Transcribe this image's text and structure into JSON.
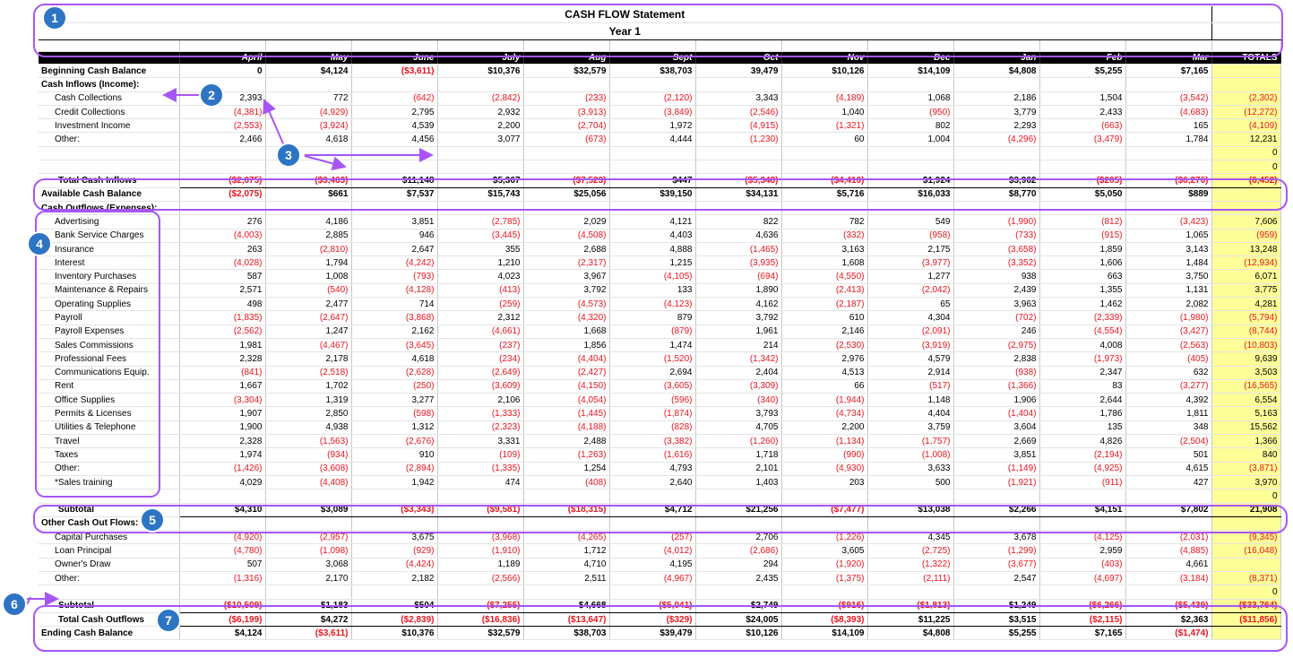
{
  "title": "CASH FLOW Statement",
  "subtitle": "Year 1",
  "months": [
    "April",
    "May",
    "June",
    "July",
    "Aug",
    "Sept",
    "Oct",
    "Nov",
    "Dec",
    "Jan",
    "Feb",
    "Mar"
  ],
  "totals_label": "TOTALS",
  "colors": {
    "negative": "#e8141e",
    "totals_fill": "#ffff99",
    "annotation": "#a855f7",
    "badge": "#2d74c4"
  },
  "rows": [
    {
      "label": "Beginning Cash Balance",
      "style": "bold",
      "values": [
        "0",
        "$4,124",
        "($3,611)",
        "$10,376",
        "$32,579",
        "$38,703",
        "39,479",
        "$10,126",
        "$14,109",
        "$4,808",
        "$5,255",
        "$7,165"
      ],
      "total": ""
    },
    {
      "label": "Cash Inflows (Income):",
      "style": "bold",
      "values": [
        "",
        "",
        "",
        "",
        "",
        "",
        "",
        "",
        "",
        "",
        "",
        ""
      ],
      "total": ""
    },
    {
      "label": "Cash Collections",
      "style": "item",
      "values": [
        "2,393",
        "772",
        "(642)",
        "(2,842)",
        "(233)",
        "(2,120)",
        "3,343",
        "(4,189)",
        "1,068",
        "2,186",
        "1,504",
        "(3,542)"
      ],
      "total": "(2,302)"
    },
    {
      "label": "Credit Collections",
      "style": "item",
      "values": [
        "(4,381)",
        "(4,929)",
        "2,795",
        "2,932",
        "(3,913)",
        "(3,849)",
        "(2,546)",
        "1,040",
        "(950)",
        "3,779",
        "2,433",
        "(4,683)"
      ],
      "total": "(12,272)"
    },
    {
      "label": "Investment Income",
      "style": "item",
      "values": [
        "(2,553)",
        "(3,924)",
        "4,539",
        "2,200",
        "(2,704)",
        "1,972",
        "(4,915)",
        "(1,321)",
        "802",
        "2,293",
        "(663)",
        "165"
      ],
      "total": "(4,109)"
    },
    {
      "label": "Other:",
      "style": "item",
      "values": [
        "2,466",
        "4,618",
        "4,456",
        "3,077",
        "(673)",
        "4,444",
        "(1,230)",
        "60",
        "1,004",
        "(4,296)",
        "(3,479)",
        "1,784"
      ],
      "total": "12,231"
    },
    {
      "label": "",
      "style": "item",
      "values": [
        "",
        "",
        "",
        "",
        "",
        "",
        "",
        "",
        "",
        "",
        "",
        ""
      ],
      "total": "0"
    },
    {
      "label": "",
      "style": "item",
      "values": [
        "",
        "",
        "",
        "",
        "",
        "",
        "",
        "",
        "",
        "",
        "",
        ""
      ],
      "total": "0"
    },
    {
      "label": "Total Cash Inflows",
      "style": "boldsub",
      "values": [
        "($2,075)",
        "($3,463)",
        "$11,148",
        "$5,367",
        "($7,523)",
        "$447",
        "($5,348)",
        "($4,410)",
        "$1,924",
        "$3,962",
        "($205)",
        "($6,276)"
      ],
      "total": "(6,452)"
    },
    {
      "label": "Available Cash Balance",
      "style": "bold",
      "values": [
        "($2,075)",
        "$661",
        "$7,537",
        "$15,743",
        "$25,056",
        "$39,150",
        "$34,131",
        "$5,716",
        "$16,033",
        "$8,770",
        "$5,050",
        "$889"
      ],
      "total": ""
    },
    {
      "label": "Cash Outflows (Expenses):",
      "style": "bold",
      "values": [
        "",
        "",
        "",
        "",
        "",
        "",
        "",
        "",
        "",
        "",
        "",
        ""
      ],
      "total": ""
    },
    {
      "label": "Advertising",
      "style": "item",
      "values": [
        "276",
        "4,186",
        "3,851",
        "(2,785)",
        "2,029",
        "4,121",
        "822",
        "782",
        "549",
        "(1,990)",
        "(812)",
        "(3,423)"
      ],
      "total": "7,606"
    },
    {
      "label": "Bank Service Charges",
      "style": "item",
      "values": [
        "(4,003)",
        "2,885",
        "946",
        "(3,445)",
        "(4,508)",
        "4,403",
        "4,636",
        "(332)",
        "(958)",
        "(733)",
        "(915)",
        "1,065"
      ],
      "total": "(959)"
    },
    {
      "label": "Insurance",
      "style": "item",
      "values": [
        "263",
        "(2,810)",
        "2,647",
        "355",
        "2,688",
        "4,888",
        "(1,465)",
        "3,163",
        "2,175",
        "(3,658)",
        "1,859",
        "3,143"
      ],
      "total": "13,248"
    },
    {
      "label": "Interest",
      "style": "item",
      "values": [
        "(4,028)",
        "1,794",
        "(4,242)",
        "1,210",
        "(2,317)",
        "1,215",
        "(3,935)",
        "1,608",
        "(3,977)",
        "(3,352)",
        "1,606",
        "1,484"
      ],
      "total": "(12,934)"
    },
    {
      "label": "Inventory Purchases",
      "style": "item",
      "values": [
        "587",
        "1,008",
        "(793)",
        "4,023",
        "3,967",
        "(4,105)",
        "(694)",
        "(4,550)",
        "1,277",
        "938",
        "663",
        "3,750"
      ],
      "total": "6,071"
    },
    {
      "label": "Maintenance & Repairs",
      "style": "item",
      "values": [
        "2,571",
        "(540)",
        "(4,128)",
        "(413)",
        "3,792",
        "133",
        "1,890",
        "(2,413)",
        "(2,042)",
        "2,439",
        "1,355",
        "1,131"
      ],
      "total": "3,775"
    },
    {
      "label": "Operating Supplies",
      "style": "item",
      "values": [
        "498",
        "2,477",
        "714",
        "(259)",
        "(4,573)",
        "(4,123)",
        "4,162",
        "(2,187)",
        "65",
        "3,963",
        "1,462",
        "2,082"
      ],
      "total": "4,281"
    },
    {
      "label": "Payroll",
      "style": "item",
      "values": [
        "(1,835)",
        "(2,647)",
        "(3,868)",
        "2,312",
        "(4,320)",
        "879",
        "3,792",
        "610",
        "4,304",
        "(702)",
        "(2,339)",
        "(1,980)"
      ],
      "total": "(5,794)"
    },
    {
      "label": "Payroll Expenses",
      "style": "item",
      "values": [
        "(2,562)",
        "1,247",
        "2,162",
        "(4,661)",
        "1,668",
        "(879)",
        "1,961",
        "2,146",
        "(2,091)",
        "246",
        "(4,554)",
        "(3,427)"
      ],
      "total": "(8,744)"
    },
    {
      "label": "Sales Commissions",
      "style": "item",
      "values": [
        "1,981",
        "(4,467)",
        "(3,645)",
        "(237)",
        "1,856",
        "1,474",
        "214",
        "(2,530)",
        "(3,919)",
        "(2,975)",
        "4,008",
        "(2,563)"
      ],
      "total": "(10,803)"
    },
    {
      "label": "Professional Fees",
      "style": "item",
      "values": [
        "2,328",
        "2,178",
        "4,618",
        "(234)",
        "(4,404)",
        "(1,520)",
        "(1,342)",
        "2,976",
        "4,579",
        "2,838",
        "(1,973)",
        "(405)"
      ],
      "total": "9,639"
    },
    {
      "label": "Communications Equip.",
      "style": "item",
      "values": [
        "(841)",
        "(2,518)",
        "(2,628)",
        "(2,649)",
        "(2,427)",
        "2,694",
        "2,404",
        "4,513",
        "2,914",
        "(938)",
        "2,347",
        "632"
      ],
      "total": "3,503"
    },
    {
      "label": "Rent",
      "style": "item",
      "values": [
        "1,667",
        "1,702",
        "(250)",
        "(3,609)",
        "(4,150)",
        "(3,605)",
        "(3,309)",
        "66",
        "(517)",
        "(1,366)",
        "83",
        "(3,277)"
      ],
      "total": "(16,565)"
    },
    {
      "label": "Office Supplies",
      "style": "item",
      "values": [
        "(3,304)",
        "1,319",
        "3,277",
        "2,106",
        "(4,054)",
        "(596)",
        "(340)",
        "(1,944)",
        "1,148",
        "1,906",
        "2,644",
        "4,392"
      ],
      "total": "6,554"
    },
    {
      "label": "Permits & Licenses",
      "style": "item",
      "values": [
        "1,907",
        "2,850",
        "(598)",
        "(1,333)",
        "(1,445)",
        "(1,874)",
        "3,793",
        "(4,734)",
        "4,404",
        "(1,404)",
        "1,786",
        "1,811"
      ],
      "total": "5,163"
    },
    {
      "label": "Utilities & Telephone",
      "style": "item",
      "values": [
        "1,900",
        "4,938",
        "1,312",
        "(2,323)",
        "(4,188)",
        "(828)",
        "4,705",
        "2,200",
        "3,759",
        "3,604",
        "135",
        "348"
      ],
      "total": "15,562"
    },
    {
      "label": "Travel",
      "style": "item",
      "values": [
        "2,328",
        "(1,563)",
        "(2,676)",
        "3,331",
        "2,488",
        "(3,382)",
        "(1,260)",
        "(1,134)",
        "(1,757)",
        "2,669",
        "4,826",
        "(2,504)"
      ],
      "total": "1,366"
    },
    {
      "label": "Taxes",
      "style": "item",
      "values": [
        "1,974",
        "(934)",
        "910",
        "(109)",
        "(1,263)",
        "(1,616)",
        "1,718",
        "(990)",
        "(1,008)",
        "3,851",
        "(2,194)",
        "501"
      ],
      "total": "840"
    },
    {
      "label": "Other:",
      "style": "item",
      "values": [
        "(1,426)",
        "(3,608)",
        "(2,894)",
        "(1,335)",
        "1,254",
        "4,793",
        "2,101",
        "(4,930)",
        "3,633",
        "(1,149)",
        "(4,925)",
        "4,615"
      ],
      "total": "(3,871)"
    },
    {
      "label": "*Sales training",
      "style": "item",
      "values": [
        "4,029",
        "(4,408)",
        "1,942",
        "474",
        "(408)",
        "2,640",
        "1,403",
        "203",
        "500",
        "(1,921)",
        "(911)",
        "427"
      ],
      "total": "3,970"
    },
    {
      "label": "",
      "style": "item",
      "values": [
        "",
        "",
        "",
        "",
        "",
        "",
        "",
        "",
        "",
        "",
        "",
        ""
      ],
      "total": "0"
    },
    {
      "label": "Subtotal",
      "style": "boldsub",
      "values": [
        "$4,310",
        "$3,089",
        "($3,343)",
        "($9,581)",
        "($18,315)",
        "$4,712",
        "$21,256",
        "($7,477)",
        "$13,038",
        "$2,266",
        "$4,151",
        "$7,802"
      ],
      "total": "21,908"
    },
    {
      "label": "Other Cash Out Flows:",
      "style": "bold",
      "values": [
        "",
        "",
        "",
        "",
        "",
        "",
        "",
        "",
        "",
        "",
        "",
        ""
      ],
      "total": ""
    },
    {
      "label": "Capital Purchases",
      "style": "item",
      "values": [
        "(4,920)",
        "(2,957)",
        "3,675",
        "(3,968)",
        "(4,265)",
        "(257)",
        "2,706",
        "(1,226)",
        "4,345",
        "3,678",
        "(4,125)",
        "(2,031)"
      ],
      "total": "(9,345)"
    },
    {
      "label": "Loan Principal",
      "style": "item",
      "values": [
        "(4,780)",
        "(1,098)",
        "(929)",
        "(1,910)",
        "1,712",
        "(4,012)",
        "(2,686)",
        "3,605",
        "(2,725)",
        "(1,299)",
        "2,959",
        "(4,885)"
      ],
      "total": "(16,048)"
    },
    {
      "label": "Owner's Draw",
      "style": "item",
      "values": [
        "507",
        "3,068",
        "(4,424)",
        "1,189",
        "4,710",
        "4,195",
        "294",
        "(1,920)",
        "(1,322)",
        "(3,677)",
        "(403)",
        "4,661"
      ],
      "total": ""
    },
    {
      "label": "Other:",
      "style": "item",
      "values": [
        "(1,316)",
        "2,170",
        "2,182",
        "(2,566)",
        "2,511",
        "(4,967)",
        "2,435",
        "(1,375)",
        "(2,111)",
        "2,547",
        "(4,697)",
        "(3,184)"
      ],
      "total": "(8,371)"
    },
    {
      "label": "",
      "style": "item",
      "values": [
        "",
        "",
        "",
        "",
        "",
        "",
        "",
        "",
        "",
        "",
        "",
        ""
      ],
      "total": "0"
    },
    {
      "label": "Subtotal",
      "style": "boldsub",
      "values": [
        "($10,509)",
        "$1,183",
        "$504",
        "($7,255)",
        "$4,668",
        "($5,041)",
        "$2,749",
        "($916)",
        "($1,813)",
        "$1,249",
        "($6,266)",
        "($5,439)"
      ],
      "total": "($33,764)"
    },
    {
      "label": "Total Cash Outflows",
      "style": "boldsub",
      "values": [
        "($6,199)",
        "$4,272",
        "($2,839)",
        "($16,836)",
        "($13,647)",
        "($329)",
        "$24,005",
        "($8,393)",
        "$11,225",
        "$3,515",
        "($2,115)",
        "$2,363"
      ],
      "total": "($11,856)"
    },
    {
      "label": "Ending Cash Balance",
      "style": "bold",
      "values": [
        "$4,124",
        "($3,611)",
        "$10,376",
        "$32,579",
        "$38,703",
        "$39,479",
        "$10,126",
        "$14,109",
        "$4,808",
        "$5,255",
        "$7,165",
        "($1,474)"
      ],
      "total": ""
    }
  ],
  "badges": [
    "1",
    "2",
    "3",
    "4",
    "5",
    "6",
    "7"
  ]
}
